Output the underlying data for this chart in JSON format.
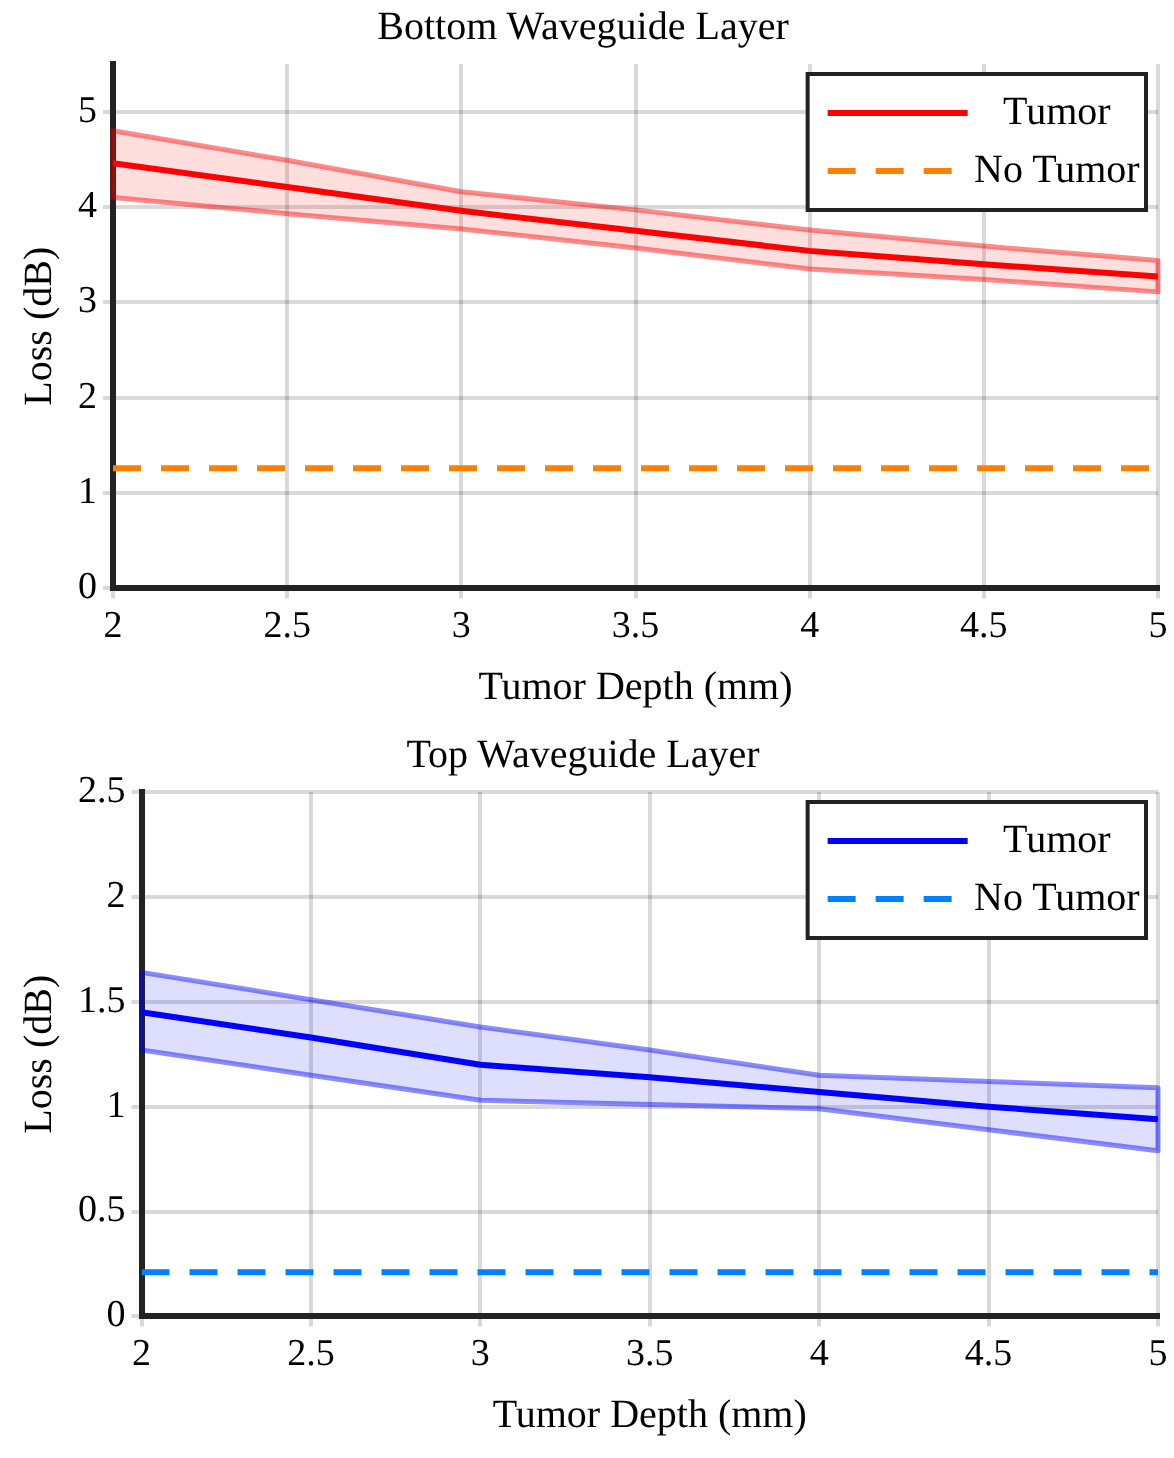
{
  "chart_data": [
    {
      "type": "line",
      "title": "Bottom Waveguide Layer",
      "xlabel": "Tumor Depth (mm)",
      "ylabel": "Loss (dB)",
      "x": [
        2,
        2.5,
        3,
        3.5,
        4,
        4.5,
        5
      ],
      "xlim": [
        2,
        5
      ],
      "xticks": [
        2,
        2.5,
        3,
        3.5,
        4,
        4.5,
        5
      ],
      "ylim": [
        0,
        5.5
      ],
      "yticks": [
        0,
        1,
        2,
        3,
        4,
        5
      ],
      "grid": true,
      "legend": "top right",
      "marker": "none",
      "series": [
        {
          "name": "Tumor",
          "color": "#ff0000",
          "values": [
            4.46,
            4.21,
            3.96,
            3.75,
            3.54,
            3.4,
            3.27
          ],
          "lower": [
            4.1,
            3.93,
            3.77,
            3.57,
            3.35,
            3.24,
            3.11
          ],
          "upper": [
            4.8,
            4.49,
            4.16,
            3.97,
            3.76,
            3.59,
            3.44
          ]
        },
        {
          "name": "No Tumor",
          "color": "#ff8000",
          "line_style": "dashed",
          "values": [
            1.26,
            1.26,
            1.26,
            1.26,
            1.26,
            1.26,
            1.26
          ]
        }
      ]
    },
    {
      "type": "line",
      "title": "Top Waveguide Layer",
      "xlabel": "Tumor Depth (mm)",
      "ylabel": "Loss (dB)",
      "x": [
        2,
        2.5,
        3,
        3.5,
        4,
        4.5,
        5
      ],
      "xlim": [
        2,
        5
      ],
      "xticks": [
        2,
        2.5,
        3,
        3.5,
        4,
        4.5,
        5
      ],
      "ylim": [
        0,
        2.5
      ],
      "yticks": [
        0,
        0.5,
        1,
        1.5,
        2,
        2.5
      ],
      "grid": true,
      "legend": "top right",
      "marker": "none",
      "series": [
        {
          "name": "Tumor",
          "color": "#0000ff",
          "values": [
            1.45,
            1.33,
            1.2,
            1.14,
            1.07,
            1.0,
            0.94
          ],
          "lower": [
            1.27,
            1.15,
            1.03,
            1.01,
            0.99,
            0.89,
            0.79
          ],
          "upper": [
            1.64,
            1.51,
            1.38,
            1.27,
            1.15,
            1.12,
            1.09
          ]
        },
        {
          "name": "No Tumor",
          "color": "#0080ff",
          "line_style": "dashed",
          "values": [
            0.21,
            0.21,
            0.21,
            0.21,
            0.21,
            0.21,
            0.21
          ]
        }
      ]
    }
  ]
}
